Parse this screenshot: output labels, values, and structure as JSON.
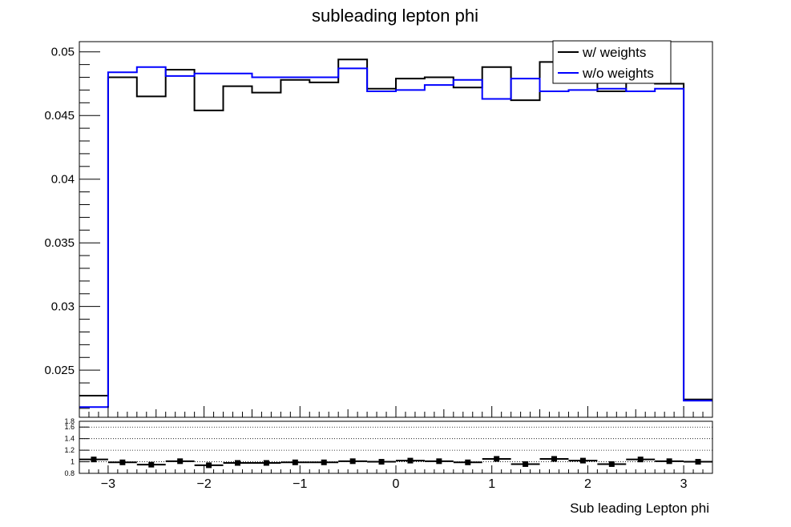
{
  "chart_data": [
    {
      "type": "histogram",
      "title": "subleading lepton phi",
      "xlim": [
        -3.3,
        3.3
      ],
      "ylim": [
        0.0213,
        0.0508
      ],
      "bin_edges": [
        -3.3,
        -3.0,
        -2.7,
        -2.4,
        -2.1,
        -1.8,
        -1.5,
        -1.2,
        -0.9,
        -0.6,
        -0.3,
        0.0,
        0.3,
        0.6,
        0.9,
        1.2,
        1.5,
        1.8,
        2.1,
        2.4,
        2.7,
        3.0,
        3.3
      ],
      "y_ticks": [
        0.025,
        0.03,
        0.035,
        0.04,
        0.045,
        0.05
      ],
      "y_tick_labels": [
        "0.025",
        "0.03",
        "0.035",
        "0.04",
        "0.045",
        "0.05"
      ],
      "legend_position": "top-right",
      "series": [
        {
          "name": "w/ weights",
          "color": "#000000",
          "values": [
            0.023,
            0.048,
            0.0465,
            0.0486,
            0.0454,
            0.0473,
            0.0468,
            0.0478,
            0.0476,
            0.0494,
            0.0471,
            0.0479,
            0.048,
            0.0472,
            0.0488,
            0.0462,
            0.0492,
            0.048,
            0.0469,
            0.048,
            0.0475,
            0.0227
          ]
        },
        {
          "name": "w/o weights",
          "color": "#0000ff",
          "values": [
            0.0221,
            0.0484,
            0.0488,
            0.0481,
            0.0483,
            0.0483,
            0.048,
            0.048,
            0.048,
            0.0487,
            0.0469,
            0.047,
            0.0474,
            0.0478,
            0.0463,
            0.0479,
            0.0469,
            0.047,
            0.0471,
            0.0469,
            0.0471,
            0.0226
          ]
        }
      ]
    },
    {
      "type": "scatter",
      "xlabel": "Sub leading Lepton phi",
      "xlim": [
        -3.3,
        3.3
      ],
      "ylim": [
        0.8,
        1.7
      ],
      "x_ticks": [
        -3,
        -2,
        -1,
        0,
        1,
        2,
        3
      ],
      "x_tick_labels": [
        "−3",
        "−2",
        "−1",
        "0",
        "1",
        "2",
        "3"
      ],
      "y_ticks": [
        0.8,
        1,
        1.2,
        1.4,
        1.6,
        1.8
      ],
      "y_tick_labels": [
        "0.8",
        "1",
        "1.2",
        "1.4",
        "1.6",
        "1.8"
      ],
      "grid_y": [
        1.0,
        1.2,
        1.4,
        1.6
      ],
      "x": [
        -3.15,
        -2.85,
        -2.55,
        -2.25,
        -1.95,
        -1.65,
        -1.35,
        -1.05,
        -0.75,
        -0.45,
        -0.15,
        0.15,
        0.45,
        0.75,
        1.05,
        1.35,
        1.65,
        1.95,
        2.25,
        2.55,
        2.85,
        3.15
      ],
      "values": [
        1.04,
        0.99,
        0.95,
        1.01,
        0.94,
        0.98,
        0.98,
        0.99,
        0.99,
        1.01,
        1.0,
        1.02,
        1.01,
        0.99,
        1.05,
        0.96,
        1.05,
        1.02,
        0.96,
        1.04,
        1.01,
        1.0
      ]
    }
  ]
}
